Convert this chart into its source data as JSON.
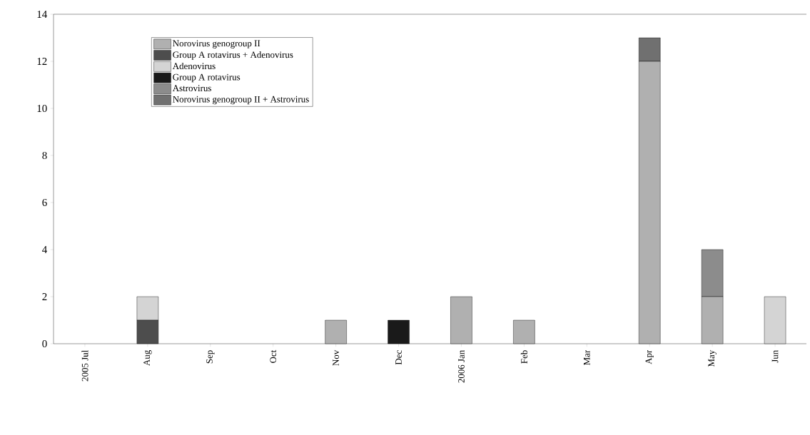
{
  "chart_data": {
    "type": "bar",
    "stacked": true,
    "categories": [
      "2005 Jul",
      "Aug",
      "Sep",
      "Oct",
      "Nov",
      "Dec",
      "2006 Jan",
      "Feb",
      "Mar",
      "Apr",
      "May",
      "Jun"
    ],
    "series": [
      {
        "name": "Norovirus genogroup II",
        "color": "#b0b0b0",
        "values": [
          0,
          0,
          0,
          0,
          1,
          0,
          2,
          1,
          0,
          12,
          2,
          0
        ]
      },
      {
        "name": "Group A rotavirus + Adenovirus",
        "color": "#4d4d4d",
        "values": [
          0,
          1,
          0,
          0,
          0,
          0,
          0,
          0,
          0,
          0,
          0,
          0
        ]
      },
      {
        "name": "Adenovirus",
        "color": "#d4d4d4",
        "values": [
          0,
          1,
          0,
          0,
          0,
          0,
          0,
          0,
          0,
          0,
          0,
          2
        ]
      },
      {
        "name": "Group A rotavirus",
        "color": "#1a1a1a",
        "values": [
          0,
          0,
          0,
          0,
          0,
          1,
          0,
          0,
          0,
          0,
          0,
          0
        ]
      },
      {
        "name": "Astrovirus",
        "color": "#8c8c8c",
        "values": [
          0,
          0,
          0,
          0,
          0,
          0,
          0,
          0,
          0,
          0,
          2,
          0
        ]
      },
      {
        "name": "Norovirus genogroup II + Astrovirus",
        "color": "#707070",
        "values": [
          0,
          0,
          0,
          0,
          0,
          0,
          0,
          0,
          0,
          1,
          0,
          0
        ]
      }
    ],
    "ylim": [
      0,
      14
    ],
    "yticks": [
      0,
      2,
      4,
      6,
      8,
      10,
      12,
      14
    ],
    "legend": "top left"
  }
}
